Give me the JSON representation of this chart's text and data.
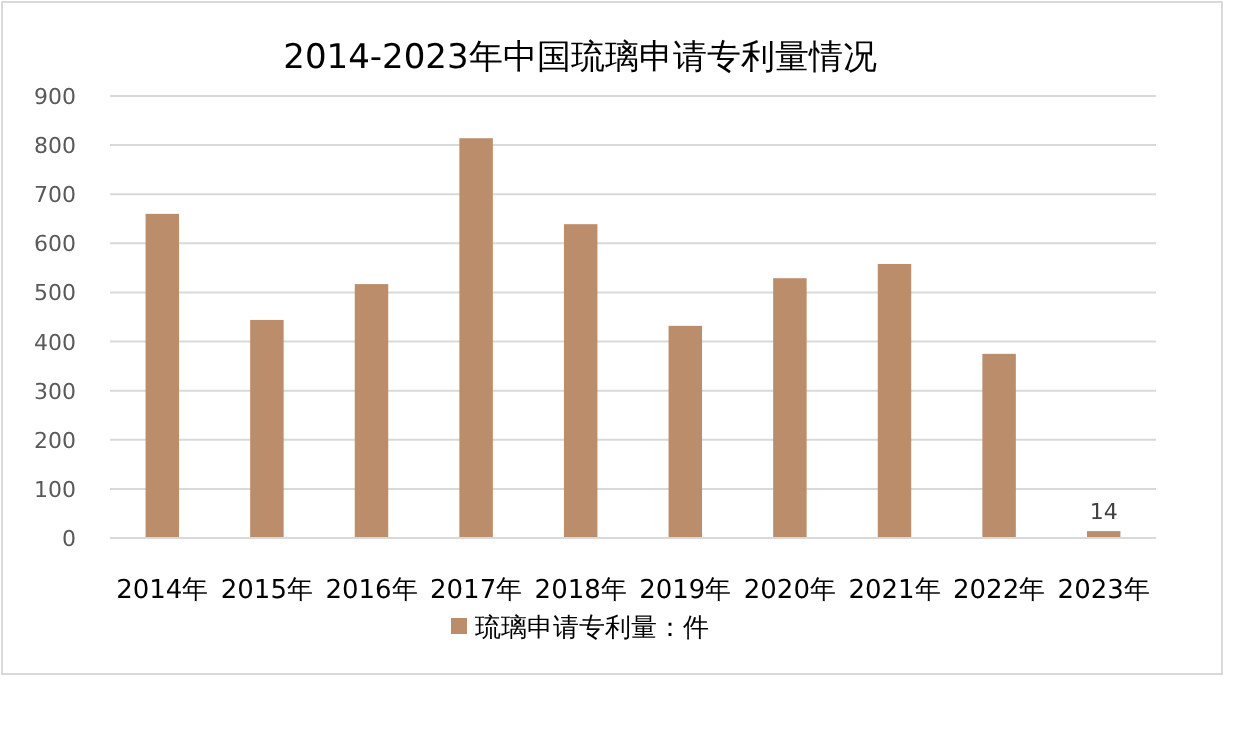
{
  "chart_data": {
    "type": "bar",
    "title": "2014-2023年中国琉璃申请专利量情况",
    "categories": [
      "2014年",
      "2015年",
      "2016年",
      "2017年",
      "2018年",
      "2019年",
      "2020年",
      "2021年",
      "2022年",
      "2023年"
    ],
    "series": [
      {
        "name": "琉璃申请专利量：件",
        "color": "#bb8d6b",
        "values": [
          660,
          444,
          517,
          814,
          639,
          432,
          529,
          558,
          375,
          14
        ],
        "value_labels": [
          null,
          null,
          null,
          null,
          null,
          null,
          null,
          null,
          null,
          "14"
        ]
      }
    ],
    "ylim": [
      0,
      900
    ],
    "yticks": [
      0,
      100,
      200,
      300,
      400,
      500,
      600,
      700,
      800,
      900
    ],
    "grid": "y",
    "legend": "bottom"
  }
}
